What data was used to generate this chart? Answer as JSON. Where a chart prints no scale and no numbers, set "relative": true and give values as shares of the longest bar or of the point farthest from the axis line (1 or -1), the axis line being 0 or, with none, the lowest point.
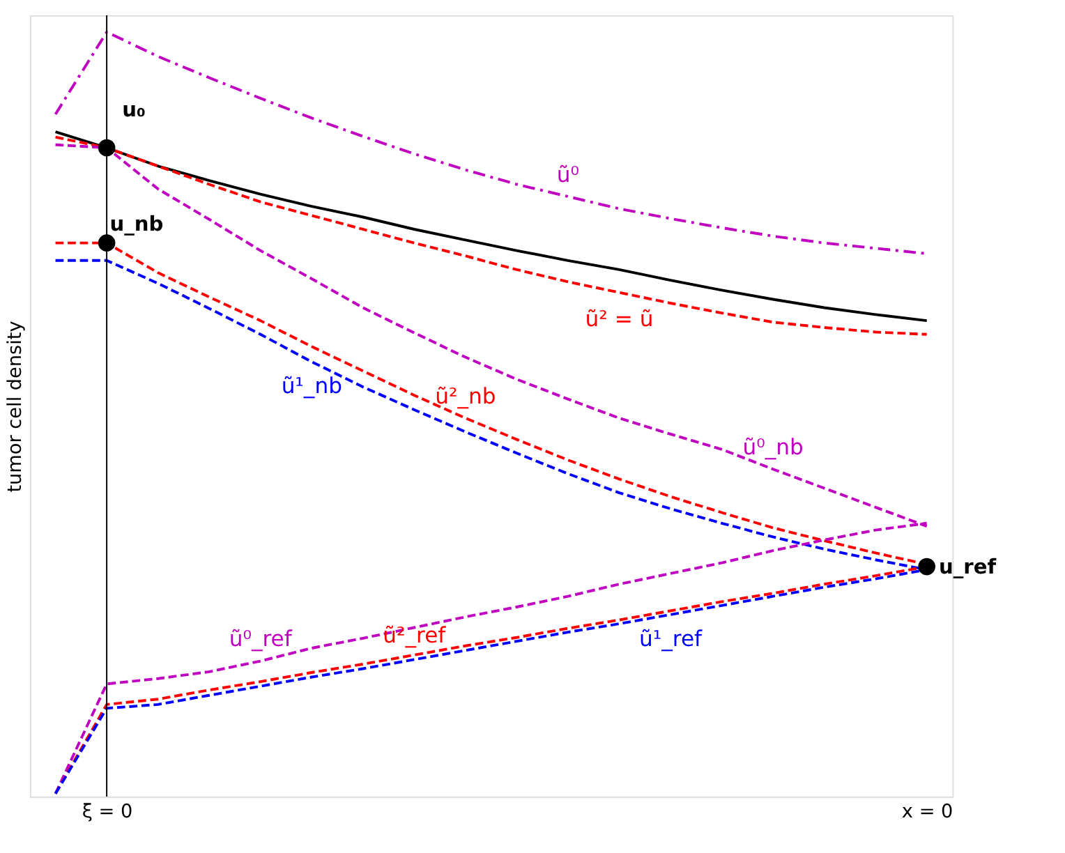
{
  "chart_data": {
    "type": "line",
    "relative": true,
    "ylabel": "tumor cell density",
    "categories": [
      null,
      "ξ = 0",
      null,
      null,
      null,
      null,
      null,
      null,
      null,
      null,
      null,
      null,
      null,
      null,
      null,
      null,
      null,
      "x = 0"
    ],
    "grid": false,
    "marker": "none",
    "ref_lines": [
      {
        "axis": "x",
        "value": "ξ = 0",
        "color": "#000000"
      }
    ],
    "series": [
      {
        "color": "#000000",
        "line_style": "solid",
        "values": [
          0.869,
          0.848,
          0.824,
          0.805,
          0.787,
          0.771,
          0.757,
          0.741,
          0.727,
          0.713,
          0.7,
          0.688,
          0.674,
          0.661,
          0.649,
          0.638,
          0.629,
          0.621
        ]
      },
      {
        "name": "ũ² = ũ",
        "color": "#ff0000",
        "line_style": "dashed",
        "values": [
          0.862,
          0.848,
          0.824,
          0.8,
          0.777,
          0.759,
          0.741,
          0.723,
          0.706,
          0.688,
          0.672,
          0.658,
          0.644,
          0.631,
          0.619,
          0.612,
          0.606,
          0.603
        ]
      },
      {
        "name": "ũ⁰",
        "color": "#c000c0",
        "line_style": "dashdot",
        "values": [
          0.892,
          1.0,
          0.968,
          0.94,
          0.913,
          0.887,
          0.863,
          0.84,
          0.819,
          0.8,
          0.784,
          0.768,
          0.755,
          0.743,
          0.732,
          0.723,
          0.716,
          0.709
        ]
      },
      {
        "name": "ũ⁰_nb",
        "color": "#c000c0",
        "line_style": "dashed",
        "values": [
          0.852,
          0.848,
          0.794,
          0.754,
          0.713,
          0.676,
          0.638,
          0.605,
          0.573,
          0.544,
          0.518,
          0.493,
          0.472,
          0.452,
          0.426,
          0.401,
          0.376,
          0.351
        ]
      },
      {
        "name": "ũ²_nb",
        "color": "#ff0000",
        "line_style": "dashed",
        "values": [
          0.723,
          0.723,
          0.684,
          0.652,
          0.621,
          0.587,
          0.555,
          0.523,
          0.493,
          0.465,
          0.438,
          0.413,
          0.39,
          0.369,
          0.349,
          0.332,
          0.316,
          0.301
        ]
      },
      {
        "name": "ũ¹_nb",
        "color": "#0000ff",
        "line_style": "dashed",
        "values": [
          0.7,
          0.7,
          0.67,
          0.637,
          0.603,
          0.567,
          0.534,
          0.504,
          0.475,
          0.447,
          0.42,
          0.395,
          0.374,
          0.355,
          0.337,
          0.321,
          0.307,
          0.294
        ]
      },
      {
        "name": "ũ⁰_ref",
        "color": "#c000c0",
        "line_style": "dashed",
        "values": [
          0.0,
          0.144,
          0.151,
          0.16,
          0.174,
          0.191,
          0.204,
          0.218,
          0.232,
          0.245,
          0.259,
          0.275,
          0.289,
          0.303,
          0.319,
          0.333,
          0.346,
          0.355
        ]
      },
      {
        "name": "ũ²_ref",
        "color": "#ff0000",
        "line_style": "dashed",
        "values": [
          0.0,
          0.117,
          0.124,
          0.136,
          0.147,
          0.159,
          0.17,
          0.182,
          0.194,
          0.205,
          0.217,
          0.228,
          0.24,
          0.252,
          0.263,
          0.275,
          0.286,
          0.298
        ]
      },
      {
        "name": "ũ¹_ref",
        "color": "#0000ff",
        "line_style": "dashed",
        "values": [
          0.0,
          0.112,
          0.117,
          0.129,
          0.141,
          0.153,
          0.164,
          0.176,
          0.188,
          0.2,
          0.212,
          0.223,
          0.235,
          0.247,
          0.259,
          0.271,
          0.282,
          0.294
        ]
      }
    ],
    "annotations": [
      {
        "text": "u₀",
        "x": "ξ = 0",
        "y": 0.848
      },
      {
        "text": "u_nb",
        "x": "ξ = 0",
        "y": 0.723
      },
      {
        "text": "u_ref",
        "x": "x = 0",
        "y": 0.298
      }
    ]
  }
}
